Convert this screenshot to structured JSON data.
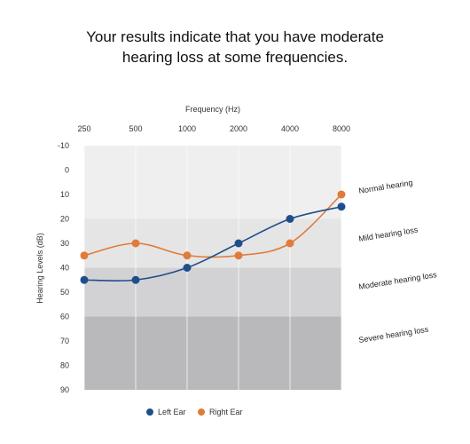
{
  "headline": {
    "line1": "Your results indicate that you have moderate",
    "line2": "hearing loss at some frequencies."
  },
  "chart_data": {
    "type": "line",
    "xlabel": "Frequency (Hz)",
    "ylabel": "Hearing Levels (dB)",
    "categories": [
      "250",
      "500",
      "1000",
      "2000",
      "4000",
      "8000"
    ],
    "yticks": [
      "-10",
      "0",
      "10",
      "20",
      "30",
      "40",
      "50",
      "60",
      "70",
      "80",
      "90"
    ],
    "ylim": [
      -10,
      90
    ],
    "y_inverted": true,
    "x_axis_position": "top",
    "bands": [
      {
        "label": "Normal hearing",
        "from": -10,
        "to": 20,
        "color": "#efefef"
      },
      {
        "label": "Mild hearing loss",
        "from": 20,
        "to": 40,
        "color": "#e5e5e6"
      },
      {
        "label": "Moderate hearing loss",
        "from": 40,
        "to": 60,
        "color": "#d2d2d4"
      },
      {
        "label": "Severe hearing loss",
        "from": 60,
        "to": 90,
        "color": "#b9b9bb"
      }
    ],
    "series": [
      {
        "name": "Left Ear",
        "color": "#1f4e8c",
        "values": [
          45,
          45,
          40,
          30,
          20,
          15
        ]
      },
      {
        "name": "Right Ear",
        "color": "#e07b39",
        "values": [
          35,
          30,
          35,
          35,
          30,
          10
        ]
      }
    ],
    "legend_position": "bottom-center"
  }
}
